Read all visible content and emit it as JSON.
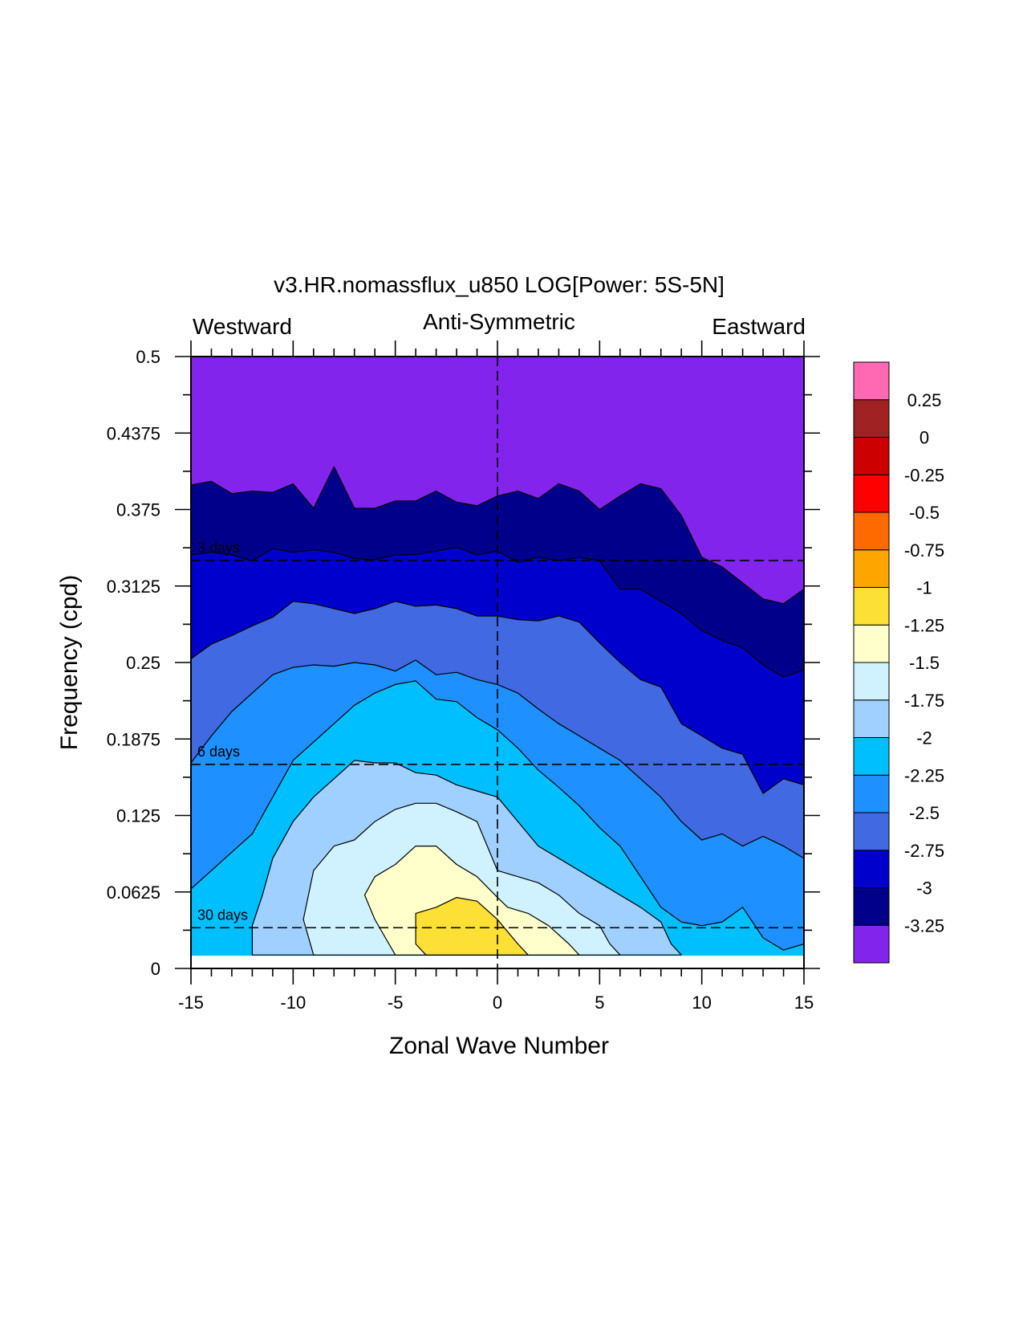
{
  "chart_data": {
    "type": "contour",
    "title": "v3.HR.nomassflux_u850 LOG[Power: 5S-5N]",
    "subtitle_left": "Westward",
    "subtitle_center": "Anti-Symmetric",
    "subtitle_right": "Eastward",
    "xlabel": "Zonal Wave Number",
    "ylabel": "Frequency (cpd)",
    "xlim": [
      -15,
      15
    ],
    "ylim": [
      0,
      0.5
    ],
    "xticks": [
      -15,
      -10,
      -5,
      0,
      5,
      10,
      15
    ],
    "xtick_labels": [
      "-15",
      "-10",
      "-5",
      "0",
      "5",
      "10",
      "15"
    ],
    "yticks": [
      0,
      0.0625,
      0.125,
      0.1875,
      0.25,
      0.3125,
      0.375,
      0.4375,
      0.5
    ],
    "ytick_labels": [
      "0",
      "0.0625",
      "0.125",
      "0.1875",
      "0.25",
      "0.3125",
      "0.375",
      "0.4375",
      "0.5"
    ],
    "reference_lines": [
      {
        "label": "3 days",
        "frequency": 0.3333
      },
      {
        "label": "6 days",
        "frequency": 0.1667
      },
      {
        "label": "30 days",
        "frequency": 0.0333
      }
    ],
    "data_frequency_min": 0.0104,
    "colorbar": {
      "colors": [
        "#8224ec",
        "#00008b",
        "#0000cd",
        "#4169e1",
        "#1e90ff",
        "#00bfff",
        "#a0d0ff",
        "#d0f2ff",
        "#ffffcc",
        "#fde036",
        "#ffa500",
        "#ff6a00",
        "#ff0000",
        "#cd0000",
        "#a02222",
        "#ff69b4"
      ],
      "levels": [
        -3.25,
        -3,
        -2.75,
        -2.5,
        -2.25,
        -2,
        -1.75,
        -1.5,
        -1.25,
        -1,
        -0.75,
        -0.5,
        -0.25,
        0,
        0.25
      ],
      "labels": [
        "-3.25",
        "-3",
        "-2.75",
        "-2.5",
        "-2.25",
        "-2",
        "-1.75",
        "-1.5",
        "-1.25",
        "-1",
        "-0.75",
        "-0.5",
        "-0.25",
        "0",
        "0.25"
      ]
    },
    "bands": [
      {
        "level_index": 1,
        "color": "#00008b",
        "lower_boundary": [
          [
            -15,
            0.395
          ],
          [
            -14,
            0.398
          ],
          [
            -13,
            0.388
          ],
          [
            -12,
            0.39
          ],
          [
            -11,
            0.389
          ],
          [
            -10,
            0.396
          ],
          [
            -9,
            0.376
          ],
          [
            -8,
            0.41
          ],
          [
            -7,
            0.376
          ],
          [
            -6,
            0.376
          ],
          [
            -5,
            0.382
          ],
          [
            -4,
            0.382
          ],
          [
            -3,
            0.39
          ],
          [
            -2,
            0.381
          ],
          [
            -1,
            0.378
          ],
          [
            0,
            0.386
          ],
          [
            1,
            0.39
          ],
          [
            2,
            0.384
          ],
          [
            3,
            0.396
          ],
          [
            4,
            0.39
          ],
          [
            5,
            0.375
          ],
          [
            6,
            0.386
          ],
          [
            7,
            0.396
          ],
          [
            8,
            0.392
          ],
          [
            9,
            0.37
          ],
          [
            10,
            0.336
          ],
          [
            11,
            0.328
          ],
          [
            12,
            0.315
          ],
          [
            13,
            0.302
          ],
          [
            14,
            0.298
          ],
          [
            15,
            0.31
          ]
        ]
      },
      {
        "level_index": 2,
        "color": "#0000cd",
        "lower_boundary": [
          [
            -15,
            0.338
          ],
          [
            -14,
            0.34
          ],
          [
            -13,
            0.338
          ],
          [
            -12,
            0.333
          ],
          [
            -11,
            0.343
          ],
          [
            -10,
            0.34
          ],
          [
            -9,
            0.342
          ],
          [
            -8,
            0.34
          ],
          [
            -7,
            0.335
          ],
          [
            -6,
            0.334
          ],
          [
            -5,
            0.338
          ],
          [
            -4,
            0.338
          ],
          [
            -3,
            0.341
          ],
          [
            -2,
            0.344
          ],
          [
            -1,
            0.338
          ],
          [
            0,
            0.341
          ],
          [
            1,
            0.332
          ],
          [
            2,
            0.336
          ],
          [
            3,
            0.333
          ],
          [
            4,
            0.336
          ],
          [
            5,
            0.333
          ],
          [
            6,
            0.31
          ],
          [
            7,
            0.31
          ],
          [
            8,
            0.3
          ],
          [
            9,
            0.29
          ],
          [
            10,
            0.276
          ],
          [
            11,
            0.268
          ],
          [
            12,
            0.262
          ],
          [
            13,
            0.248
          ],
          [
            14,
            0.238
          ],
          [
            15,
            0.244
          ]
        ]
      },
      {
        "level_index": 3,
        "color": "#4169e1",
        "lower_boundary": [
          [
            -15,
            0.253
          ],
          [
            -14,
            0.265
          ],
          [
            -13,
            0.272
          ],
          [
            -12,
            0.28
          ],
          [
            -11,
            0.287
          ],
          [
            -10,
            0.3
          ],
          [
            -9,
            0.298
          ],
          [
            -8,
            0.294
          ],
          [
            -7,
            0.29
          ],
          [
            -6,
            0.294
          ],
          [
            -5,
            0.3
          ],
          [
            -4,
            0.296
          ],
          [
            -3,
            0.297
          ],
          [
            -2,
            0.294
          ],
          [
            -1,
            0.288
          ],
          [
            0,
            0.288
          ],
          [
            1,
            0.285
          ],
          [
            2,
            0.284
          ],
          [
            3,
            0.288
          ],
          [
            4,
            0.283
          ],
          [
            5,
            0.266
          ],
          [
            6,
            0.25
          ],
          [
            7,
            0.236
          ],
          [
            8,
            0.23
          ],
          [
            9,
            0.2
          ],
          [
            10,
            0.19
          ],
          [
            11,
            0.18
          ],
          [
            12,
            0.175
          ],
          [
            13,
            0.143
          ],
          [
            14,
            0.155
          ],
          [
            15,
            0.15
          ]
        ]
      },
      {
        "level_index": 4,
        "color": "#1e90ff",
        "lower_boundary": [
          [
            -15,
            0.168
          ],
          [
            -14,
            0.19
          ],
          [
            -13,
            0.21
          ],
          [
            -12,
            0.225
          ],
          [
            -11,
            0.24
          ],
          [
            -10,
            0.246
          ],
          [
            -9,
            0.248
          ],
          [
            -8,
            0.247
          ],
          [
            -7,
            0.25
          ],
          [
            -6,
            0.248
          ],
          [
            -5,
            0.243
          ],
          [
            -4,
            0.252
          ],
          [
            -3,
            0.24
          ],
          [
            -2,
            0.242
          ],
          [
            -1,
            0.236
          ],
          [
            0,
            0.232
          ],
          [
            1,
            0.225
          ],
          [
            2,
            0.212
          ],
          [
            3,
            0.2
          ],
          [
            4,
            0.19
          ],
          [
            5,
            0.18
          ],
          [
            6,
            0.17
          ],
          [
            7,
            0.155
          ],
          [
            8,
            0.14
          ],
          [
            9,
            0.12
          ],
          [
            10,
            0.105
          ],
          [
            11,
            0.11
          ],
          [
            12,
            0.1
          ],
          [
            13,
            0.108
          ],
          [
            14,
            0.1
          ],
          [
            15,
            0.09
          ]
        ]
      },
      {
        "level_index": 5,
        "color": "#00bfff",
        "lower_boundary": [
          [
            -15,
            0.065
          ],
          [
            -14,
            0.08
          ],
          [
            -13,
            0.095
          ],
          [
            -12,
            0.11
          ],
          [
            -11,
            0.14
          ],
          [
            -10,
            0.17
          ],
          [
            -9,
            0.185
          ],
          [
            -8,
            0.2
          ],
          [
            -7,
            0.215
          ],
          [
            -6,
            0.225
          ],
          [
            -5,
            0.232
          ],
          [
            -4,
            0.235
          ],
          [
            -3,
            0.22
          ],
          [
            -2,
            0.218
          ],
          [
            -1,
            0.205
          ],
          [
            0,
            0.195
          ],
          [
            1,
            0.18
          ],
          [
            2,
            0.162
          ],
          [
            3,
            0.148
          ],
          [
            4,
            0.133
          ],
          [
            5,
            0.115
          ],
          [
            6,
            0.1
          ],
          [
            7,
            0.075
          ],
          [
            8,
            0.05
          ],
          [
            9,
            0.038
          ],
          [
            10,
            0.035
          ],
          [
            11,
            0.038
          ],
          [
            12,
            0.05
          ],
          [
            13,
            0.025
          ],
          [
            14,
            0.015
          ],
          [
            15,
            0.02
          ]
        ]
      }
    ],
    "blobs": [
      {
        "level_index": 6,
        "color": "#a0d0ff",
        "boundary": [
          [
            -12,
            0.011
          ],
          [
            -12,
            0.035
          ],
          [
            -11.5,
            0.06
          ],
          [
            -11,
            0.09
          ],
          [
            -10,
            0.12
          ],
          [
            -9,
            0.14
          ],
          [
            -8,
            0.155
          ],
          [
            -7,
            0.17
          ],
          [
            -6,
            0.168
          ],
          [
            -5,
            0.168
          ],
          [
            -4,
            0.16
          ],
          [
            -3,
            0.158
          ],
          [
            -2,
            0.15
          ],
          [
            -1,
            0.145
          ],
          [
            0,
            0.14
          ],
          [
            1,
            0.12
          ],
          [
            2,
            0.1
          ],
          [
            3,
            0.09
          ],
          [
            4,
            0.08
          ],
          [
            5,
            0.07
          ],
          [
            6,
            0.06
          ],
          [
            7,
            0.05
          ],
          [
            8,
            0.038
          ],
          [
            8.5,
            0.02
          ],
          [
            9,
            0.011
          ]
        ]
      },
      {
        "level_index": 7,
        "color": "#d0f2ff",
        "boundary": [
          [
            -9,
            0.011
          ],
          [
            -9.5,
            0.04
          ],
          [
            -9,
            0.08
          ],
          [
            -8,
            0.1
          ],
          [
            -7,
            0.105
          ],
          [
            -6,
            0.12
          ],
          [
            -5,
            0.13
          ],
          [
            -4,
            0.135
          ],
          [
            -3,
            0.135
          ],
          [
            -2,
            0.128
          ],
          [
            -1,
            0.12
          ],
          [
            -0.5,
            0.1
          ],
          [
            0,
            0.08
          ],
          [
            1,
            0.075
          ],
          [
            2,
            0.07
          ],
          [
            3,
            0.06
          ],
          [
            4,
            0.045
          ],
          [
            5,
            0.035
          ],
          [
            5.5,
            0.02
          ],
          [
            6,
            0.011
          ]
        ]
      },
      {
        "level_index": 8,
        "color": "#ffffcc",
        "boundary": [
          [
            -5,
            0.011
          ],
          [
            -6,
            0.04
          ],
          [
            -6.5,
            0.06
          ],
          [
            -6,
            0.075
          ],
          [
            -5,
            0.085
          ],
          [
            -4,
            0.1
          ],
          [
            -3,
            0.1
          ],
          [
            -2,
            0.085
          ],
          [
            -1,
            0.075
          ],
          [
            0,
            0.058
          ],
          [
            0.5,
            0.05
          ],
          [
            1.5,
            0.045
          ],
          [
            2.5,
            0.035
          ],
          [
            3.5,
            0.02
          ],
          [
            4,
            0.011
          ]
        ]
      },
      {
        "level_index": 9,
        "color": "#fde036",
        "boundary": [
          [
            -4,
            0.02
          ],
          [
            -4,
            0.045
          ],
          [
            -3,
            0.05
          ],
          [
            -2,
            0.058
          ],
          [
            -1,
            0.055
          ],
          [
            0,
            0.04
          ],
          [
            0.5,
            0.03
          ],
          [
            1,
            0.02
          ],
          [
            1.5,
            0.011
          ],
          [
            0,
            0.011
          ],
          [
            -3.5,
            0.011
          ]
        ]
      }
    ]
  }
}
